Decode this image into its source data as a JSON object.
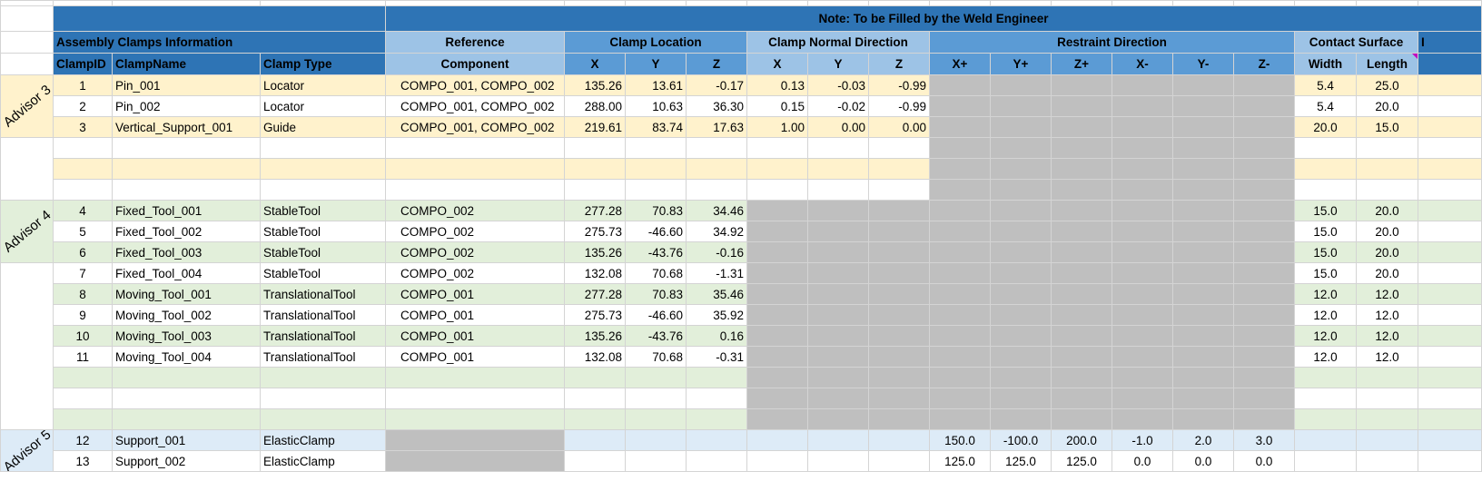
{
  "header": {
    "note": "Note: To be Filled by the Weld Engineer",
    "assembly_title": "Assembly Clamps Information",
    "reference": "Reference",
    "component": "Component",
    "clamp_location": "Clamp Location",
    "clamp_normal_direction": "Clamp Normal Direction",
    "restraint_direction": "Restraint Direction",
    "contact_surface": "Contact Surface",
    "clampid": "ClampID",
    "clampname": "ClampName",
    "clamp_type": "Clamp Type",
    "x": "X",
    "y": "Y",
    "z": "Z",
    "xp": "X+",
    "yp": "Y+",
    "zp": "Z+",
    "xm": "X-",
    "ym": "Y-",
    "zm": "Z-",
    "width": "Width",
    "length": "Length",
    "overflow": "I"
  },
  "advisors": {
    "a3": "Advisor 3",
    "a4": "Advisor 4",
    "a5": "Advisor 5"
  },
  "rows": [
    {
      "id": "1",
      "name": "Pin_001",
      "type": "Locator",
      "comp": "COMPO_001, COMPO_002",
      "lx": "135.26",
      "ly": "13.61",
      "lz": "-0.17",
      "nx": "0.13",
      "ny": "-0.03",
      "nz": "-0.99",
      "w": "5.4",
      "l": "25.0"
    },
    {
      "id": "2",
      "name": "Pin_002",
      "type": "Locator",
      "comp": "COMPO_001, COMPO_002",
      "lx": "288.00",
      "ly": "10.63",
      "lz": "36.30",
      "nx": "0.15",
      "ny": "-0.02",
      "nz": "-0.99",
      "w": "5.4",
      "l": "20.0"
    },
    {
      "id": "3",
      "name": "Vertical_Support_001",
      "type": "Guide",
      "comp": "COMPO_001, COMPO_002",
      "lx": "219.61",
      "ly": "83.74",
      "lz": "17.63",
      "nx": "1.00",
      "ny": "0.00",
      "nz": "0.00",
      "w": "20.0",
      "l": "15.0"
    },
    {
      "id": "4",
      "name": "Fixed_Tool_001",
      "type": "StableTool",
      "comp": "COMPO_002",
      "lx": "277.28",
      "ly": "70.83",
      "lz": "34.46",
      "w": "15.0",
      "l": "20.0"
    },
    {
      "id": "5",
      "name": "Fixed_Tool_002",
      "type": "StableTool",
      "comp": "COMPO_002",
      "lx": "275.73",
      "ly": "-46.60",
      "lz": "34.92",
      "w": "15.0",
      "l": "20.0"
    },
    {
      "id": "6",
      "name": "Fixed_Tool_003",
      "type": "StableTool",
      "comp": "COMPO_002",
      "lx": "135.26",
      "ly": "-43.76",
      "lz": "-0.16",
      "w": "15.0",
      "l": "20.0"
    },
    {
      "id": "7",
      "name": "Fixed_Tool_004",
      "type": "StableTool",
      "comp": "COMPO_002",
      "lx": "132.08",
      "ly": "70.68",
      "lz": "-1.31",
      "w": "15.0",
      "l": "20.0"
    },
    {
      "id": "8",
      "name": "Moving_Tool_001",
      "type": "TranslationalTool",
      "comp": "COMPO_001",
      "lx": "277.28",
      "ly": "70.83",
      "lz": "35.46",
      "w": "12.0",
      "l": "12.0"
    },
    {
      "id": "9",
      "name": "Moving_Tool_002",
      "type": "TranslationalTool",
      "comp": "COMPO_001",
      "lx": "275.73",
      "ly": "-46.60",
      "lz": "35.92",
      "w": "12.0",
      "l": "12.0"
    },
    {
      "id": "10",
      "name": "Moving_Tool_003",
      "type": "TranslationalTool",
      "comp": "COMPO_001",
      "lx": "135.26",
      "ly": "-43.76",
      "lz": "0.16",
      "w": "12.0",
      "l": "12.0"
    },
    {
      "id": "11",
      "name": "Moving_Tool_004",
      "type": "TranslationalTool",
      "comp": "COMPO_001",
      "lx": "132.08",
      "ly": "70.68",
      "lz": "-0.31",
      "w": "12.0",
      "l": "12.0"
    },
    {
      "id": "12",
      "name": "Support_001",
      "type": "ElasticClamp",
      "xp": "150.0",
      "yp": "-100.0",
      "zp": "200.0",
      "xm": "-1.0",
      "ym": "2.0",
      "zm": "3.0"
    },
    {
      "id": "13",
      "name": "Support_002",
      "type": "ElasticClamp",
      "xp": "125.0",
      "yp": "125.0",
      "zp": "125.0",
      "xm": "0.0",
      "ym": "0.0",
      "zm": "0.0"
    }
  ],
  "colors": {
    "header_dark": "#2e74b5",
    "header_light": "#9dc3e6",
    "header_mid": "#5b9bd5",
    "advisor3_fill": "#fff2cc",
    "advisor4_fill": "#e2efda",
    "advisor5_fill": "#ddebf7",
    "disabled_fill": "#bfbfbf"
  }
}
